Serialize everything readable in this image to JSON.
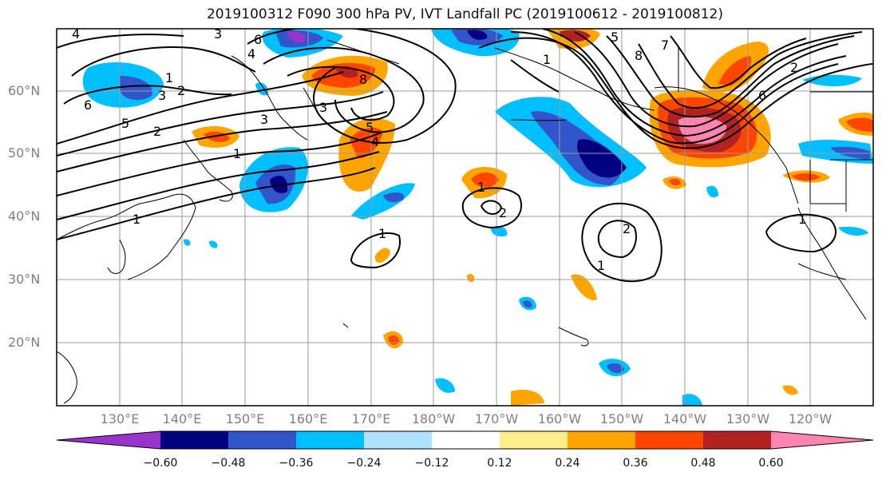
{
  "title": "2019100312 F090 300 hPa PV, IVT Landfall PC (2019100612 - 2019100812)",
  "lat_labels": [
    "60°N",
    "50°N",
    "40°N",
    "30°N",
    "20°N"
  ],
  "lon_labels": [
    "130°E",
    "140°E",
    "150°E",
    "160°E",
    "170°E",
    "180°W",
    "170°W",
    "160°W",
    "150°W",
    "140°W",
    "130°W",
    "120°W"
  ],
  "colorbar": {
    "tick_labels": [
      "−0.60",
      "−0.48",
      "−0.36",
      "−0.24",
      "−0.12",
      "0.12",
      "0.24",
      "0.36",
      "0.48",
      "0.60"
    ],
    "colors": [
      "#9933cc",
      "#000080",
      "#3355cc",
      "#00bfff",
      "#b0e2ff",
      "#ffffff",
      "#ffec8b",
      "#ffa500",
      "#ff4500",
      "#b22222",
      "#ff85b0"
    ]
  },
  "contour_labels": [
    "4",
    "3",
    "6",
    "4",
    "1",
    "2",
    "3",
    "6",
    "5",
    "2",
    "1",
    "1",
    "3",
    "8",
    "5",
    "4",
    "1",
    "5",
    "7",
    "8",
    "1",
    "1",
    "2",
    "1",
    "2",
    "1",
    "2",
    "3",
    "6"
  ]
}
